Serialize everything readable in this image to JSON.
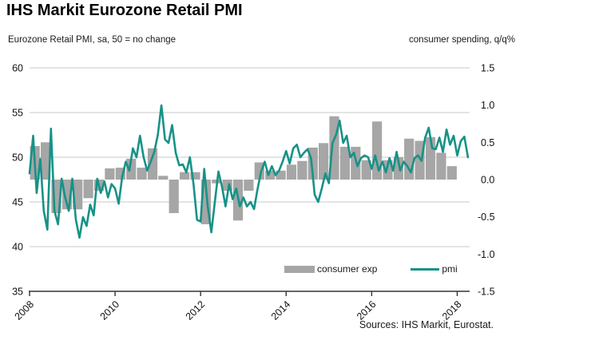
{
  "header": {
    "title": "IHS Markit Eurozone Retail PMI"
  },
  "chart": {
    "left_axis_title": "Eurozone Retail PMI, sa, 50 = no change",
    "right_axis_title": "consumer spending, q/q%",
    "source": "Sources: IHS Markit, Eurostat.",
    "legend": {
      "bar_label": "consumer exp",
      "line_label": "pmi"
    }
  },
  "chart_data": {
    "type": "combo",
    "title": "IHS Markit Eurozone Retail PMI",
    "grid": "horizontal",
    "legend_position": "bottom-inside",
    "gridline_color": "#c9c9c9",
    "axis_color": "#333333",
    "left_axis": {
      "min": 35,
      "max": 60,
      "ticks": [
        60,
        55,
        50,
        45,
        40,
        35
      ]
    },
    "right_axis": {
      "min": -1.5,
      "max": 1.5,
      "ticks": [
        "1.5",
        "1.0",
        "0.5",
        "0.0",
        "-0.5",
        "-1.0",
        "-1.5"
      ]
    },
    "x_axis": {
      "start": 2008,
      "end": 2018.29,
      "tick_years": [
        2008,
        2010,
        2012,
        2014,
        2016,
        2018
      ]
    },
    "series": [
      {
        "name": "consumer exp",
        "type": "bar",
        "axis": "right",
        "color": "#a6a6a6",
        "frequency": "quarterly",
        "start": "2008Q1",
        "values": [
          0.45,
          0.5,
          -0.45,
          -0.4,
          -0.4,
          -0.25,
          -0.15,
          0.15,
          0.16,
          0.28,
          0.16,
          0.42,
          0.05,
          -0.45,
          0.1,
          0.1,
          -0.6,
          -0.05,
          -0.15,
          -0.55,
          -0.15,
          0.23,
          0.12,
          0.12,
          0.2,
          0.25,
          0.43,
          0.49,
          0.85,
          0.44,
          0.44,
          0.26,
          0.78,
          0.26,
          0.3,
          0.55,
          0.52,
          0.57,
          0.36,
          0.18
        ]
      },
      {
        "name": "pmi",
        "type": "line",
        "axis": "left",
        "color": "#179287",
        "frequency": "monthly",
        "start": "2008-01",
        "values": [
          48.2,
          52.4,
          46.0,
          49.8,
          44.0,
          41.9,
          53.2,
          44.0,
          42.5,
          47.6,
          45.5,
          44.0,
          47.6,
          43.0,
          41.0,
          43.3,
          42.3,
          44.7,
          43.5,
          47.6,
          46.0,
          47.3,
          45.5,
          47.0,
          46.5,
          44.8,
          47.8,
          49.5,
          48.5,
          51.0,
          50.0,
          52.4,
          50.0,
          48.5,
          49.5,
          50.6,
          52.5,
          55.8,
          52.0,
          51.6,
          53.6,
          50.5,
          49.1,
          49.2,
          48.3,
          50.0,
          47.0,
          43.0,
          42.8,
          48.7,
          44.5,
          41.6,
          45.0,
          48.4,
          46.7,
          44.5,
          47.0,
          45.3,
          46.5,
          44.5,
          45.5,
          44.5,
          45.0,
          44.2,
          46.5,
          48.4,
          49.5,
          48.0,
          49.0,
          48.0,
          48.5,
          49.5,
          50.7,
          49.3,
          51.0,
          51.4,
          50.0,
          50.5,
          50.9,
          49.9,
          45.8,
          45.0,
          46.5,
          48.2,
          47.1,
          51.6,
          52.5,
          54.1,
          51.6,
          52.4,
          50.0,
          50.5,
          49.0,
          49.9,
          50.2,
          50.0,
          48.7,
          50.2,
          48.5,
          49.5,
          48.3,
          49.9,
          48.5,
          50.6,
          48.5,
          49.5,
          49.0,
          48.3,
          49.9,
          50.2,
          49.6,
          52.2,
          53.3,
          51.0,
          50.9,
          52.2,
          50.6,
          53.1,
          51.4,
          52.4,
          50.2,
          51.8,
          52.3,
          50.0
        ]
      }
    ]
  }
}
